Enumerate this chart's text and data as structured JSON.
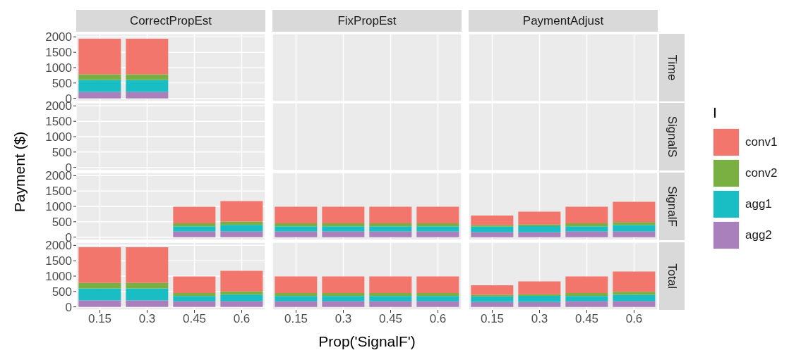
{
  "chart_data": [
    {
      "type": "bar",
      "stacked": true,
      "title": "CorrectPropEst",
      "ylabel": "Payment ($)",
      "legend": "right",
      "legend_title": "I",
      "categories": [
        "0.15",
        "0.3",
        "0.45",
        "0.6"
      ],
      "ylim": [
        -100,
        2100
      ],
      "yticks": [
        0,
        500,
        1000,
        1500,
        2000
      ],
      "grid": true,
      "tick_labels": "y",
      "series": [
        {
          "name": "agg2",
          "color": "#a980bb",
          "values": [
            210,
            210,
            0,
            0
          ]
        },
        {
          "name": "agg1",
          "color": "#19bec4",
          "values": [
            390,
            390,
            0,
            0
          ]
        },
        {
          "name": "conv2",
          "color": "#7aaf41",
          "values": [
            180,
            180,
            0,
            0
          ]
        },
        {
          "name": "conv1",
          "color": "#f2766c",
          "values": [
            1160,
            1160,
            0,
            0
          ]
        }
      ]
    },
    {
      "type": "bar",
      "stacked": true,
      "title": "FixPropEst",
      "categories": [
        "0.15",
        "0.3",
        "0.45",
        "0.6"
      ],
      "ylim": [
        -100,
        2100
      ],
      "yticks": [
        0,
        500,
        1000,
        1500,
        2000
      ],
      "grid": true,
      "tick_labels": false,
      "series": [
        {
          "color": "#a980bb",
          "values": [
            0,
            0,
            0,
            0
          ]
        },
        {
          "color": "#19bec4",
          "values": [
            0,
            0,
            0,
            0
          ]
        },
        {
          "color": "#7aaf41",
          "values": [
            0,
            0,
            0,
            0
          ]
        },
        {
          "color": "#f2766c",
          "values": [
            0,
            0,
            0,
            0
          ]
        }
      ]
    },
    {
      "type": "bar",
      "stacked": true,
      "title": "PaymentAdjust",
      "y2label": "Time",
      "categories": [
        "0.15",
        "0.3",
        "0.45",
        "0.6"
      ],
      "ylim": [
        -100,
        2100
      ],
      "yticks": [
        0,
        500,
        1000,
        1500,
        2000
      ],
      "grid": true,
      "tick_labels": false,
      "series": [
        {
          "color": "#a980bb",
          "values": [
            0,
            0,
            0,
            0
          ]
        },
        {
          "color": "#19bec4",
          "values": [
            0,
            0,
            0,
            0
          ]
        },
        {
          "color": "#7aaf41",
          "values": [
            0,
            0,
            0,
            0
          ]
        },
        {
          "color": "#f2766c",
          "values": [
            0,
            0,
            0,
            0
          ]
        }
      ]
    },
    {
      "type": "bar",
      "stacked": true,
      "categories": [
        "0.15",
        "0.3",
        "0.45",
        "0.6"
      ],
      "ylim": [
        -100,
        2100
      ],
      "yticks": [
        0,
        500,
        1000,
        1500,
        2000
      ],
      "grid": true,
      "tick_labels": "y",
      "series": [
        {
          "color": "#a980bb",
          "values": [
            0,
            0,
            0,
            0
          ]
        },
        {
          "color": "#19bec4",
          "values": [
            0,
            0,
            0,
            0
          ]
        },
        {
          "color": "#7aaf41",
          "values": [
            0,
            0,
            0,
            0
          ]
        },
        {
          "color": "#f2766c",
          "values": [
            0,
            0,
            0,
            0
          ]
        }
      ]
    },
    {
      "type": "bar",
      "stacked": true,
      "categories": [
        "0.15",
        "0.3",
        "0.45",
        "0.6"
      ],
      "ylim": [
        -100,
        2100
      ],
      "yticks": [
        0,
        500,
        1000,
        1500,
        2000
      ],
      "grid": true,
      "tick_labels": false,
      "series": [
        {
          "color": "#a980bb",
          "values": [
            0,
            0,
            0,
            0
          ]
        },
        {
          "color": "#19bec4",
          "values": [
            0,
            0,
            0,
            0
          ]
        },
        {
          "color": "#7aaf41",
          "values": [
            0,
            0,
            0,
            0
          ]
        },
        {
          "color": "#f2766c",
          "values": [
            0,
            0,
            0,
            0
          ]
        }
      ]
    },
    {
      "type": "bar",
      "stacked": true,
      "y2label": "SignalS",
      "categories": [
        "0.15",
        "0.3",
        "0.45",
        "0.6"
      ],
      "ylim": [
        -100,
        2100
      ],
      "yticks": [
        0,
        500,
        1000,
        1500,
        2000
      ],
      "grid": true,
      "tick_labels": false,
      "series": [
        {
          "color": "#a980bb",
          "values": [
            0,
            0,
            0,
            0
          ]
        },
        {
          "color": "#19bec4",
          "values": [
            0,
            0,
            0,
            0
          ]
        },
        {
          "color": "#7aaf41",
          "values": [
            0,
            0,
            0,
            0
          ]
        },
        {
          "color": "#f2766c",
          "values": [
            0,
            0,
            0,
            0
          ]
        }
      ]
    },
    {
      "type": "bar",
      "stacked": true,
      "categories": [
        "0.15",
        "0.3",
        "0.45",
        "0.6"
      ],
      "ylim": [
        -100,
        2100
      ],
      "yticks": [
        0,
        500,
        1000,
        1500,
        2000
      ],
      "grid": true,
      "tick_labels": "y",
      "series": [
        {
          "color": "#a980bb",
          "values": [
            0,
            0,
            180,
            180
          ]
        },
        {
          "color": "#19bec4",
          "values": [
            0,
            0,
            170,
            220
          ]
        },
        {
          "color": "#7aaf41",
          "values": [
            0,
            0,
            100,
            100
          ]
        },
        {
          "color": "#f2766c",
          "values": [
            0,
            0,
            540,
            670
          ]
        }
      ]
    },
    {
      "type": "bar",
      "stacked": true,
      "categories": [
        "0.15",
        "0.3",
        "0.45",
        "0.6"
      ],
      "ylim": [
        -100,
        2100
      ],
      "yticks": [
        0,
        500,
        1000,
        1500,
        2000
      ],
      "grid": true,
      "tick_labels": false,
      "series": [
        {
          "color": "#a980bb",
          "values": [
            180,
            180,
            180,
            180
          ]
        },
        {
          "color": "#19bec4",
          "values": [
            170,
            170,
            170,
            170
          ]
        },
        {
          "color": "#7aaf41",
          "values": [
            100,
            100,
            100,
            100
          ]
        },
        {
          "color": "#f2766c",
          "values": [
            540,
            540,
            540,
            540
          ]
        }
      ]
    },
    {
      "type": "bar",
      "stacked": true,
      "y2label": "SignalF",
      "categories": [
        "0.15",
        "0.3",
        "0.45",
        "0.6"
      ],
      "ylim": [
        -100,
        2100
      ],
      "yticks": [
        0,
        500,
        1000,
        1500,
        2000
      ],
      "grid": true,
      "tick_labels": false,
      "series": [
        {
          "color": "#a980bb",
          "values": [
            160,
            160,
            180,
            180
          ]
        },
        {
          "color": "#19bec4",
          "values": [
            180,
            200,
            170,
            210
          ]
        },
        {
          "color": "#7aaf41",
          "values": [
            50,
            50,
            100,
            100
          ]
        },
        {
          "color": "#f2766c",
          "values": [
            310,
            420,
            540,
            660
          ]
        }
      ]
    },
    {
      "type": "bar",
      "stacked": true,
      "categories": [
        "0.15",
        "0.3",
        "0.45",
        "0.6"
      ],
      "ylim": [
        -100,
        2100
      ],
      "yticks": [
        0,
        500,
        1000,
        1500,
        2000
      ],
      "grid": true,
      "series": [
        {
          "color": "#a980bb",
          "values": [
            210,
            210,
            180,
            180
          ]
        },
        {
          "color": "#19bec4",
          "values": [
            390,
            390,
            170,
            220
          ]
        },
        {
          "color": "#7aaf41",
          "values": [
            180,
            180,
            100,
            100
          ]
        },
        {
          "color": "#f2766c",
          "values": [
            1160,
            1160,
            540,
            670
          ]
        }
      ]
    },
    {
      "type": "bar",
      "stacked": true,
      "xlabel": "Prop('SignalF')",
      "categories": [
        "0.15",
        "0.3",
        "0.45",
        "0.6"
      ],
      "ylim": [
        -100,
        2100
      ],
      "yticks": [
        0,
        500,
        1000,
        1500,
        2000
      ],
      "grid": true,
      "tick_labels": "x",
      "series": [
        {
          "color": "#a980bb",
          "values": [
            180,
            180,
            180,
            180
          ]
        },
        {
          "color": "#19bec4",
          "values": [
            170,
            170,
            170,
            170
          ]
        },
        {
          "color": "#7aaf41",
          "values": [
            100,
            100,
            100,
            100
          ]
        },
        {
          "color": "#f2766c",
          "values": [
            540,
            540,
            540,
            540
          ]
        }
      ]
    },
    {
      "type": "bar",
      "stacked": true,
      "y2label": "Total",
      "categories": [
        "0.15",
        "0.3",
        "0.45",
        "0.6"
      ],
      "ylim": [
        -100,
        2100
      ],
      "yticks": [
        0,
        500,
        1000,
        1500,
        2000
      ],
      "grid": true,
      "tick_labels": "x",
      "series": [
        {
          "color": "#a980bb",
          "values": [
            160,
            160,
            180,
            180
          ]
        },
        {
          "color": "#19bec4",
          "values": [
            180,
            200,
            170,
            210
          ]
        },
        {
          "color": "#7aaf41",
          "values": [
            50,
            50,
            100,
            100
          ]
        },
        {
          "color": "#f2766c",
          "values": [
            310,
            420,
            540,
            660
          ]
        }
      ]
    }
  ]
}
